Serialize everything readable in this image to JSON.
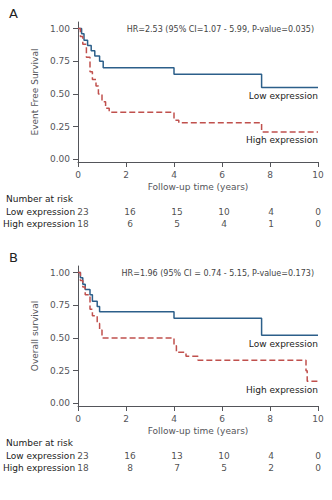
{
  "chart_data": [
    {
      "type": "step",
      "title": "A",
      "xlabel": "Follow-up time (years)",
      "ylabel": "Event Free Survival",
      "annotation": "HR=2.53 (95% CI=1.07 - 5.99, P-value=0.035)",
      "series": [
        {
          "name": "Low expression",
          "color": "#2c5f8a",
          "line_style": "solid",
          "x": [
            0,
            0.15,
            0.25,
            0.4,
            0.55,
            0.7,
            0.9,
            1.05,
            1.1,
            4.0,
            4.05,
            7.6,
            7.65,
            10.0
          ],
          "values": [
            1.0,
            0.96,
            0.91,
            0.87,
            0.83,
            0.79,
            0.75,
            0.7,
            0.7,
            0.65,
            0.65,
            0.65,
            0.55,
            0.55
          ]
        },
        {
          "name": "High expression",
          "color": "#c0504d",
          "line_style": "dashed",
          "x": [
            0,
            0.1,
            0.2,
            0.35,
            0.5,
            0.6,
            0.75,
            0.85,
            1.0,
            1.15,
            1.3,
            1.5,
            3.8,
            4.0,
            4.2,
            7.6,
            7.65,
            10.0
          ],
          "values": [
            1.0,
            0.94,
            0.88,
            0.78,
            0.67,
            0.61,
            0.56,
            0.5,
            0.44,
            0.39,
            0.36,
            0.36,
            0.36,
            0.3,
            0.28,
            0.28,
            0.21,
            0.21
          ]
        }
      ],
      "xlim": [
        0,
        10
      ],
      "xticks": [
        0,
        2,
        4,
        6,
        8,
        10
      ],
      "ylim": [
        -0.02,
        1.05
      ],
      "yticks": [
        {
          "value": 0,
          "label": "0.00"
        },
        {
          "value": 0.25,
          "label": "0.25"
        },
        {
          "value": 0.5,
          "label": "0.50"
        },
        {
          "value": 0.75,
          "label": "0.75"
        },
        {
          "value": 1,
          "label": "1.00"
        }
      ],
      "grid": false,
      "at_risk": {
        "title": "Number at risk",
        "times": [
          0,
          2,
          4,
          6,
          8,
          10
        ],
        "rows": [
          {
            "name": "Low expression",
            "values": [
              23,
              16,
              15,
              10,
              4,
              0
            ]
          },
          {
            "name": "High expression",
            "values": [
              18,
              6,
              5,
              4,
              1,
              0
            ]
          }
        ]
      }
    },
    {
      "type": "step",
      "title": "B",
      "xlabel": "Follow-up time (years)",
      "ylabel": "Overall survival",
      "annotation": "HR=1.96 (95% CI = 0.74 - 5.15, P-value=0.173)",
      "series": [
        {
          "name": "Low expression",
          "color": "#2c5f8a",
          "line_style": "solid",
          "x": [
            0,
            0.1,
            0.2,
            0.3,
            0.5,
            0.6,
            0.8,
            0.9,
            1.0,
            1.1,
            4.0,
            4.1,
            7.6,
            7.65,
            10.0
          ],
          "values": [
            1.0,
            0.96,
            0.91,
            0.87,
            0.83,
            0.78,
            0.74,
            0.7,
            0.7,
            0.7,
            0.65,
            0.65,
            0.65,
            0.52,
            0.52
          ]
        },
        {
          "name": "High expression",
          "color": "#c0504d",
          "line_style": "dashed",
          "x": [
            0,
            0.1,
            0.2,
            0.3,
            0.5,
            0.6,
            0.7,
            0.8,
            0.9,
            1.0,
            1.05,
            4.0,
            4.1,
            4.5,
            5.0,
            6.0,
            7.5,
            9.5,
            9.55,
            10.0
          ],
          "values": [
            1.0,
            0.94,
            0.89,
            0.83,
            0.72,
            0.67,
            0.67,
            0.61,
            0.56,
            0.5,
            0.5,
            0.44,
            0.39,
            0.36,
            0.33,
            0.33,
            0.33,
            0.25,
            0.17,
            0.17
          ]
        }
      ],
      "xlim": [
        0,
        10
      ],
      "xticks": [
        0,
        2,
        4,
        6,
        8,
        10
      ],
      "ylim": [
        -0.02,
        1.05
      ],
      "yticks": [
        {
          "value": 0,
          "label": "0.00"
        },
        {
          "value": 0.25,
          "label": "0.25"
        },
        {
          "value": 0.5,
          "label": "0.50"
        },
        {
          "value": 0.75,
          "label": "0.75"
        },
        {
          "value": 1,
          "label": "1.00"
        }
      ],
      "grid": false,
      "at_risk": {
        "title": "Number at risk",
        "times": [
          0,
          2,
          4,
          6,
          8,
          10
        ],
        "rows": [
          {
            "name": "Low expression",
            "values": [
              23,
              16,
              13,
              10,
              4,
              0
            ]
          },
          {
            "name": "High expression",
            "values": [
              18,
              8,
              7,
              5,
              2,
              0
            ]
          }
        ]
      }
    }
  ]
}
